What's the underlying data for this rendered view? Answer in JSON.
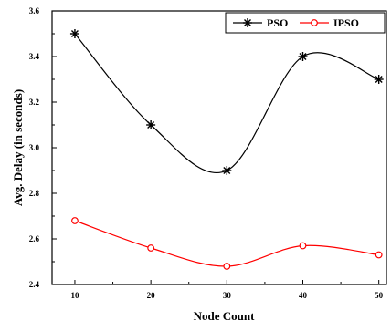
{
  "chart_data": {
    "type": "line",
    "xlabel": "Node Count",
    "ylabel": "Avg. Delay (in seconds)",
    "x": [
      10,
      20,
      30,
      40,
      50
    ],
    "x_ticks": [
      "10",
      "20",
      "30",
      "40",
      "50"
    ],
    "xlim": [
      7,
      51
    ],
    "ylim": [
      2.4,
      3.6
    ],
    "y_ticks": [
      "2.4",
      "2.6",
      "2.8",
      "3.0",
      "3.2",
      "3.4",
      "3.6"
    ],
    "grid": false,
    "legend_position": "top-right",
    "series": [
      {
        "name": "PSO",
        "values": [
          3.5,
          3.1,
          2.9,
          3.4,
          3.3
        ],
        "color": "#000000",
        "marker": "asterisk"
      },
      {
        "name": "IPSO",
        "values": [
          2.68,
          2.56,
          2.48,
          2.57,
          2.53
        ],
        "color": "#ff0000",
        "marker": "open-circle"
      }
    ]
  }
}
